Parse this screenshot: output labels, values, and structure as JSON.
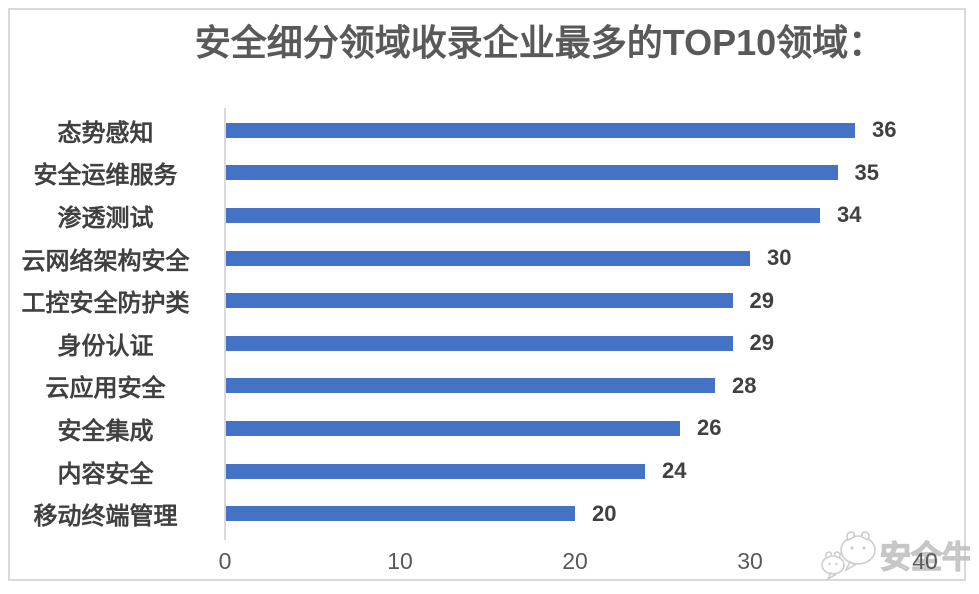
{
  "chart_data": {
    "type": "bar",
    "orientation": "horizontal",
    "title": "安全细分领域收录企业最多的TOP10领域：",
    "categories": [
      "态势感知",
      "安全运维服务",
      "渗透测试",
      "云网络架构安全",
      "工控安全防护类",
      "身份认证",
      "云应用安全",
      "安全集成",
      "内容安全",
      "移动终端管理"
    ],
    "values": [
      36,
      35,
      34,
      30,
      29,
      29,
      28,
      26,
      24,
      20
    ],
    "xlabel": "",
    "ylabel": "",
    "xlim": [
      0,
      40
    ],
    "x_ticks": [
      0,
      10,
      20,
      30,
      40
    ],
    "grid": false,
    "legend": "none",
    "data_labels": true
  },
  "colors": {
    "bar": "#4472c4",
    "title_text": "#595959",
    "category_text": "#404040",
    "value_text": "#404040",
    "tick_text": "#595959",
    "axis_line": "#d9d9d9",
    "frame_border": "#d9d9d9",
    "background": "#ffffff",
    "watermark": "#c6c6c6"
  },
  "watermark": {
    "text": "安全牛",
    "icon": "aqniu-chat-bubbles-logo"
  }
}
